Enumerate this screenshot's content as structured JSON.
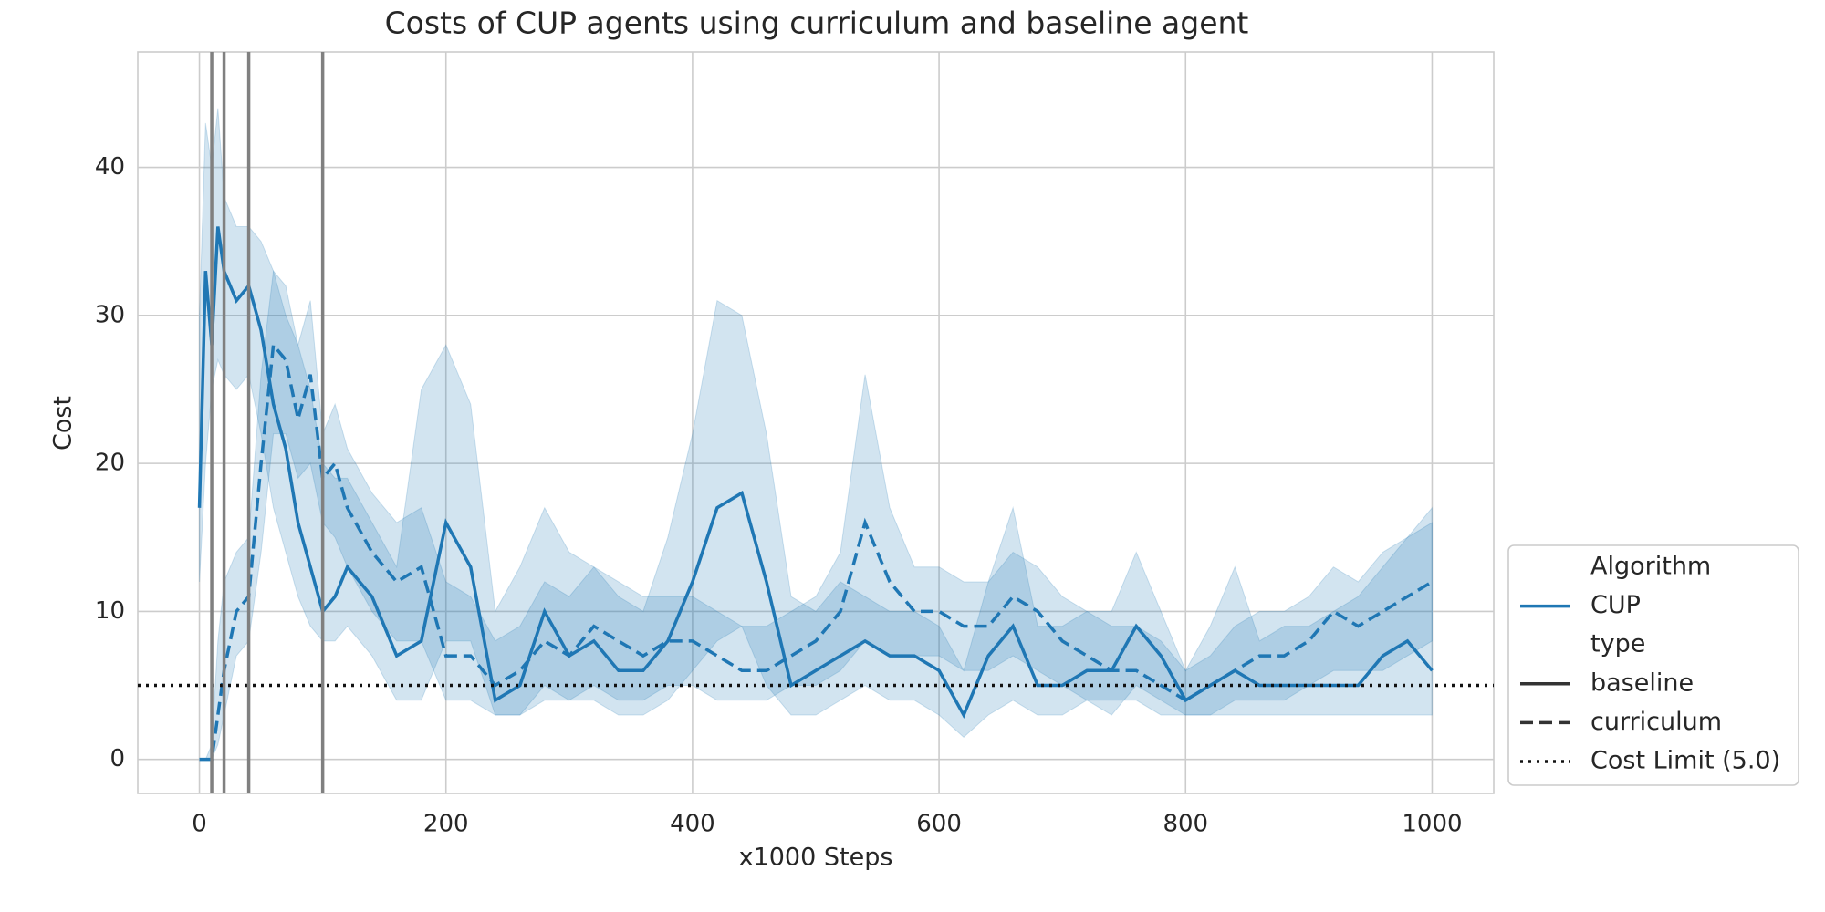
{
  "chart_data": {
    "type": "line",
    "title": "Costs of CUP agents using curriculum and baseline agent",
    "x_label": "x1000 Steps",
    "y_label": "Cost",
    "xlim": [
      -50,
      1050
    ],
    "ylim": [
      -2.3,
      47.8
    ],
    "xticks": [
      0,
      200,
      400,
      600,
      800,
      1000
    ],
    "yticks": [
      0,
      10,
      20,
      30,
      40
    ],
    "grid": true,
    "legend_position": "lower right",
    "legend_titles": [
      "Algorithm",
      "type"
    ],
    "algorithm": "CUP",
    "x": [
      0,
      5,
      10,
      15,
      20,
      30,
      40,
      50,
      60,
      70,
      80,
      90,
      100,
      110,
      120,
      140,
      160,
      180,
      200,
      220,
      240,
      260,
      280,
      300,
      320,
      340,
      360,
      380,
      400,
      420,
      440,
      460,
      480,
      500,
      520,
      540,
      560,
      580,
      600,
      620,
      640,
      660,
      680,
      700,
      720,
      740,
      760,
      780,
      800,
      820,
      840,
      860,
      880,
      900,
      920,
      940,
      960,
      980,
      1000
    ],
    "series": [
      {
        "name": "baseline",
        "color": "#1f77b4",
        "dash": "solid",
        "values": [
          17,
          33,
          28,
          36,
          33,
          31,
          32,
          29,
          24,
          21,
          16,
          13,
          10,
          11,
          13,
          11,
          7,
          8,
          16,
          13,
          4,
          5,
          10,
          7,
          8,
          6,
          6,
          8,
          12,
          17,
          18,
          12,
          5,
          6,
          7,
          8,
          7,
          7,
          6,
          3,
          7,
          9,
          5,
          5,
          6,
          6,
          9,
          7,
          4,
          5,
          6,
          5,
          5,
          5,
          5,
          5,
          7,
          8,
          6
        ],
        "lower": [
          12,
          20,
          25,
          27,
          26,
          25,
          26,
          22,
          17,
          14,
          11,
          9,
          8,
          8,
          9,
          7,
          4,
          4,
          8,
          8,
          3,
          3,
          5,
          4,
          4,
          3,
          3,
          4,
          6,
          8,
          9,
          5,
          3,
          3,
          4,
          5,
          4,
          4,
          3,
          1.5,
          3,
          4,
          3,
          3,
          4,
          3,
          5,
          4,
          3,
          3,
          3,
          3,
          3,
          3,
          3,
          3,
          3,
          3,
          3
        ],
        "upper": [
          30,
          43,
          40,
          44,
          38,
          36,
          36,
          35,
          33,
          30,
          28,
          25,
          20,
          19,
          19,
          16,
          13,
          25,
          28,
          24,
          10,
          13,
          17,
          14,
          13,
          11,
          10,
          15,
          22,
          31,
          30,
          22,
          11,
          10,
          12,
          11,
          10,
          10,
          9,
          6,
          12,
          17,
          9,
          9,
          10,
          10,
          14,
          10,
          6,
          9,
          13,
          8,
          9,
          9,
          10,
          11,
          13,
          15,
          17
        ]
      },
      {
        "name": "curriculum",
        "color": "#1f77b4",
        "dash": "dashed",
        "values": [
          0,
          0,
          0,
          3,
          6,
          10,
          11,
          20,
          28,
          27,
          23,
          26,
          19,
          20,
          17,
          14,
          12,
          13,
          7,
          7,
          5,
          6,
          8,
          7,
          9,
          8,
          7,
          8,
          8,
          7,
          6,
          6,
          7,
          8,
          10,
          16,
          12,
          10,
          10,
          9,
          9,
          11,
          10,
          8,
          7,
          6,
          6,
          5,
          4,
          5,
          6,
          7,
          7,
          8,
          10,
          9,
          10,
          11,
          12
        ],
        "lower": [
          0,
          0,
          0,
          1,
          3,
          7,
          8,
          14,
          22,
          22,
          19,
          20,
          16,
          15,
          13,
          10,
          8,
          8,
          4,
          4,
          3,
          3,
          4,
          4,
          5,
          4,
          4,
          5,
          5,
          4,
          4,
          4,
          5,
          5,
          6,
          8,
          7,
          7,
          7,
          6,
          6,
          7,
          6,
          5,
          4,
          4,
          4,
          3,
          3,
          3,
          4,
          4,
          4,
          5,
          6,
          6,
          6,
          7,
          8
        ],
        "upper": [
          0,
          0,
          1,
          8,
          12,
          14,
          15,
          26,
          33,
          32,
          28,
          31,
          22,
          24,
          21,
          18,
          16,
          17,
          12,
          11,
          8,
          9,
          12,
          11,
          13,
          12,
          11,
          11,
          11,
          10,
          9,
          9,
          10,
          11,
          14,
          26,
          17,
          13,
          13,
          12,
          12,
          14,
          13,
          11,
          10,
          9,
          9,
          8,
          6,
          7,
          9,
          10,
          10,
          11,
          13,
          12,
          14,
          15,
          16
        ]
      }
    ],
    "reference_line": {
      "label": "Cost Limit (5.0)",
      "value": 5,
      "color": "#111111",
      "dash": "dotted"
    },
    "vlines": {
      "values": [
        10,
        20,
        40,
        100
      ],
      "color": "#808080"
    }
  }
}
